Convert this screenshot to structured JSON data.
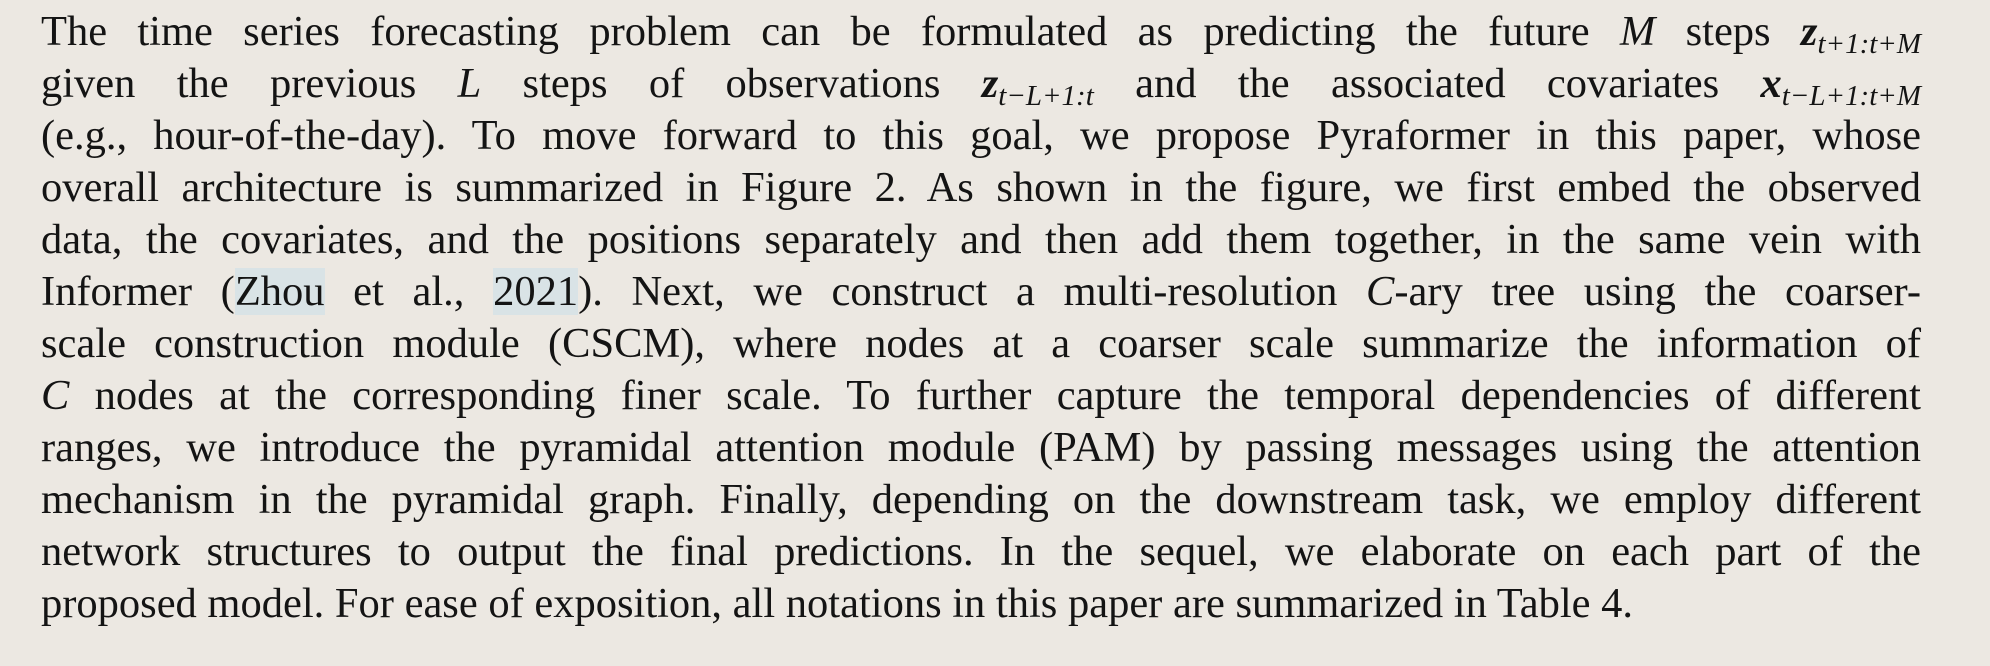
{
  "lines": [
    {
      "segments": [
        {
          "t": "The time series forecasting problem can be formulated as predicting the future "
        },
        {
          "t": "M",
          "k": "m"
        },
        {
          "t": " steps "
        },
        {
          "t": "z",
          "k": "mb"
        },
        {
          "t": "t+1:t+M",
          "k": "sub"
        }
      ]
    },
    {
      "segments": [
        {
          "t": "given the previous "
        },
        {
          "t": "L",
          "k": "m"
        },
        {
          "t": " steps of observations "
        },
        {
          "t": "z",
          "k": "mb"
        },
        {
          "t": "t−L+1:t",
          "k": "sub"
        },
        {
          "t": " and the associated covariates "
        },
        {
          "t": "x",
          "k": "mb"
        },
        {
          "t": "t−L+1:t+M",
          "k": "sub"
        }
      ]
    },
    {
      "segments": [
        {
          "t": "(e.g., hour-of-the-day). To move forward to this goal, we propose Pyraformer in this paper, whose"
        }
      ]
    },
    {
      "segments": [
        {
          "t": "overall architecture is summarized in Figure 2. As shown in the figure, we first embed the observed"
        }
      ]
    },
    {
      "segments": [
        {
          "t": "data, the covariates, and the positions separately and then add them together, in the same vein with"
        }
      ]
    },
    {
      "segments": [
        {
          "t": "Informer ("
        },
        {
          "t": "Zhou",
          "k": "cite"
        },
        {
          "t": " et al., "
        },
        {
          "t": "2021",
          "k": "cite"
        },
        {
          "t": ").  Next, we construct a multi-resolution "
        },
        {
          "t": "C",
          "k": "m"
        },
        {
          "t": "-ary tree using the coarser-"
        }
      ]
    },
    {
      "segments": [
        {
          "t": "scale construction module (CSCM), where nodes at a coarser scale summarize the information of"
        }
      ]
    },
    {
      "segments": [
        {
          "t": "C",
          "k": "m"
        },
        {
          "t": " nodes at the corresponding finer scale. To further capture the temporal dependencies of different"
        }
      ]
    },
    {
      "segments": [
        {
          "t": "ranges, we introduce the pyramidal attention module (PAM) by passing messages using the attention"
        }
      ]
    },
    {
      "segments": [
        {
          "t": "mechanism in the pyramidal graph. Finally, depending on the downstream task, we employ different"
        }
      ]
    },
    {
      "segments": [
        {
          "t": "network structures to output the final predictions.  In the sequel, we elaborate on each part of the"
        }
      ]
    },
    {
      "segments": [
        {
          "t": "proposed model. For ease of exposition, all notations in this paper are summarized in Table 4."
        }
      ]
    }
  ]
}
